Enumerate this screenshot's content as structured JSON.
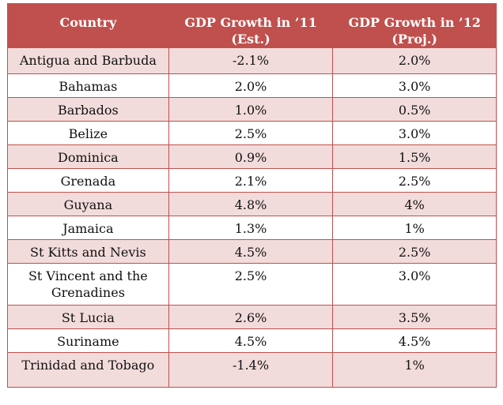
{
  "table": {
    "headers": {
      "country": "Country",
      "growth_11": "GDP Growth in ’11 (Est.)",
      "growth_12": "GDP Growth in ’12 (Proj.)"
    },
    "rows": [
      {
        "country": "Antigua and Barbuda",
        "growth_11": "-2.1%",
        "growth_12": "2.0%"
      },
      {
        "country": "Bahamas",
        "growth_11": "2.0%",
        "growth_12": "3.0%"
      },
      {
        "country": "Barbados",
        "growth_11": "1.0%",
        "growth_12": "0.5%"
      },
      {
        "country": "Belize",
        "growth_11": "2.5%",
        "growth_12": "3.0%"
      },
      {
        "country": "Dominica",
        "growth_11": "0.9%",
        "growth_12": "1.5%"
      },
      {
        "country": "Grenada",
        "growth_11": "2.1%",
        "growth_12": "2.5%"
      },
      {
        "country": "Guyana",
        "growth_11": "4.8%",
        "growth_12": "4%"
      },
      {
        "country": "Jamaica",
        "growth_11": "1.3%",
        "growth_12": "1%"
      },
      {
        "country": "St Kitts and Nevis",
        "growth_11": "4.5%",
        "growth_12": "2.5%"
      },
      {
        "country": "St Vincent and the Grenadines",
        "growth_11": "2.5%",
        "growth_12": "3.0%"
      },
      {
        "country": "St Lucia",
        "growth_11": "2.6%",
        "growth_12": "3.5%"
      },
      {
        "country": "Suriname",
        "growth_11": "4.5%",
        "growth_12": "4.5%"
      },
      {
        "country": "Trinidad and Tobago",
        "growth_11": "-1.4%",
        "growth_12": "1%"
      }
    ]
  },
  "colors": {
    "header_bg": "#c0504d",
    "band_bg": "#f2dcdb",
    "border": "#c0504d"
  }
}
